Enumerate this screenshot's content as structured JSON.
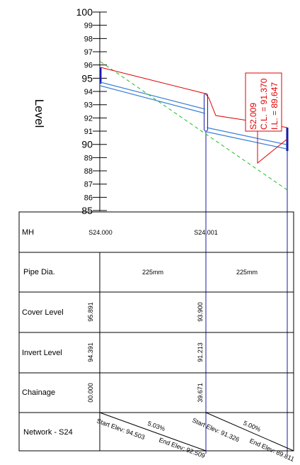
{
  "axis": {
    "label": "Level",
    "ticks": [
      "100",
      "99",
      "98",
      "97",
      "96",
      "95",
      "94",
      "93",
      "92",
      "91",
      "90",
      "89",
      "88",
      "87",
      "86",
      "85"
    ]
  },
  "callout": {
    "line1": "S2.009",
    "line2": "C.L. = 91.370",
    "line3": "I.L. = 89.647"
  },
  "table": {
    "rows": {
      "mh": "MH",
      "pipe_dia": "Pipe Dia.",
      "cover_level": "Cover Level",
      "invert_level": "Invert Level",
      "chainage": "Chainage",
      "network": "Network - S24"
    },
    "manholes": [
      {
        "name": "S24.000",
        "cover": "95.891",
        "invert": "94.391",
        "chainage": "00.000"
      },
      {
        "name": "S24.001",
        "cover": "93.900",
        "invert": "91.213",
        "chainage": "39.671"
      }
    ],
    "pipes": [
      {
        "dia": "225mm",
        "gradient": "5.03%",
        "start_elev": "Start Elev: 94.503",
        "end_elev": "End Elev: 92.509"
      },
      {
        "dia": "225mm",
        "gradient": "5.00%",
        "start_elev": "Start Elev: 91.326",
        "end_elev": "End Elev: 89.811"
      }
    ]
  },
  "colors": {
    "ground_line": "#e00000",
    "pipe_line": "#3a7fd8",
    "manhole": "#1a1aa8",
    "slope_line": "#22bb22"
  }
}
